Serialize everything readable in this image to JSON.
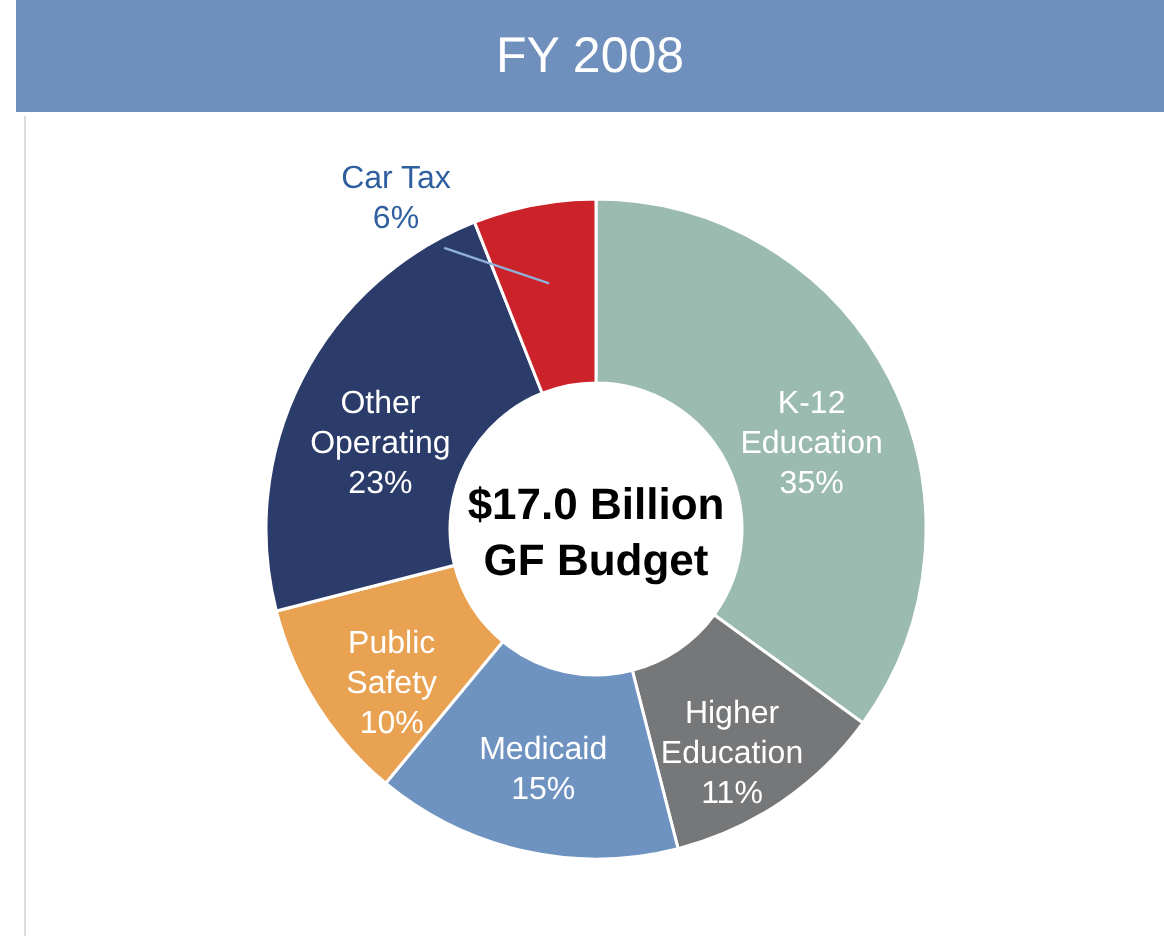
{
  "chart_data": {
    "type": "donut",
    "title": "FY 2008",
    "categories": [
      "K-12\nEducation",
      "Higher\nEducation",
      "Medicaid",
      "Public\nSafety",
      "Other\nOperating",
      "Car Tax"
    ],
    "values": [
      35,
      11,
      15,
      10,
      23,
      6
    ],
    "colors": [
      "#9bbbb0",
      "#767779",
      "#6f93c0",
      "#e9a152",
      "#2b3c6b",
      "#cc2229"
    ],
    "value_labels": [
      "35%",
      "11%",
      "15%",
      "10%",
      "23%",
      "6%"
    ],
    "annotations": [
      "$17.0 Billion\nGF Budget"
    ]
  }
}
